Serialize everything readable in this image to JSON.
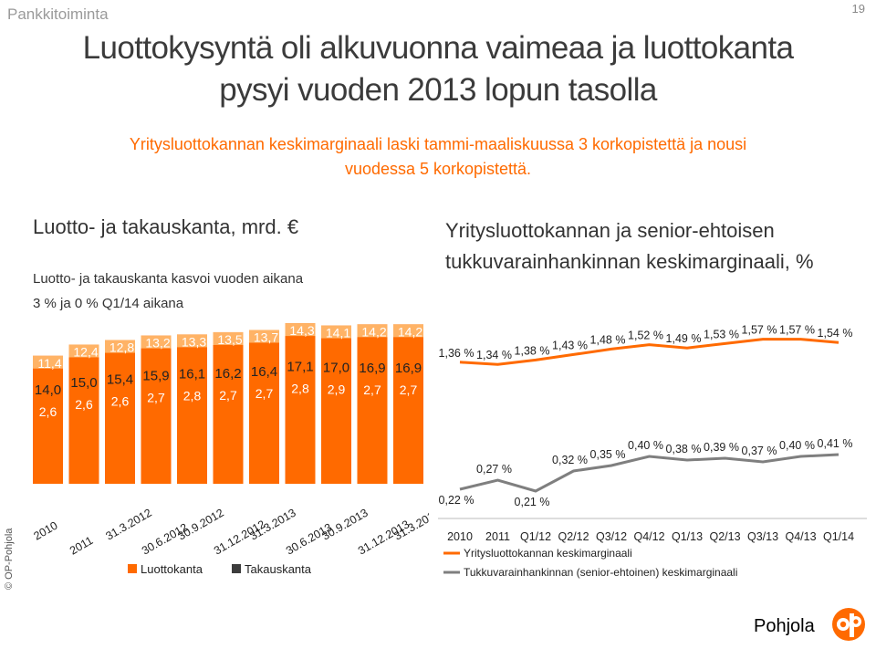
{
  "header": {
    "section": "Pankkitoiminta",
    "page_number": "19",
    "title_line1": "Luottokysyntä oli alkuvuonna vaimeaa ja luottokanta",
    "title_line2": "pysyi vuoden 2013 lopun tasolla",
    "subtitle_line1": "Yritysluottokannan keskimarginaali laski tammi-maaliskuussa 3 korkopistettä ja nousi",
    "subtitle_line2": "vuodessa 5 korkopistettä."
  },
  "left_panel": {
    "heading": "Luotto- ja takauskanta, mrd. €",
    "note_line1": "Luotto- ja takauskanta kasvoi vuoden aikana",
    "note_line2": "3 % ja 0 % Q1/14 aikana"
  },
  "right_panel": {
    "heading_line1": "Yritysluottokannan ja senior-ehtoisen",
    "heading_line2": "tukkuvarainhankinnan keskimarginaali, %"
  },
  "footer": {
    "copyright": "© OP-Pohjola",
    "logo_text": "Pohjola"
  },
  "colors": {
    "orange": "#ff6a00",
    "orange_light": "#ffb366",
    "gray_dark": "#3c3c3c",
    "gray_line": "#7f7f7f"
  },
  "chart_data": [
    {
      "type": "bar",
      "stacked": true,
      "categories": [
        "2010",
        "2011",
        "31.3.2012",
        "30.6.2012",
        "30.9.2012",
        "31.12.2012",
        "31.3.2013",
        "30.6.2013",
        "30.9.2013",
        "31.12.2013",
        "31.3.2014"
      ],
      "series": [
        {
          "name": "Luottokanta",
          "values": [
            11.4,
            12.4,
            12.8,
            13.2,
            13.3,
            13.5,
            13.7,
            14.3,
            14.1,
            14.2,
            14.2
          ],
          "labels": [
            "11,4",
            "12,4",
            "12,8",
            "13,2",
            "13,3",
            "13,5",
            "13,7",
            "14,3",
            "14,1",
            "14,2",
            "14,2"
          ]
        },
        {
          "name": "Takauskanta",
          "values": [
            2.6,
            2.6,
            2.6,
            2.7,
            2.8,
            2.7,
            2.7,
            2.8,
            2.9,
            2.7,
            2.7
          ],
          "labels": [
            "2,6",
            "2,6",
            "2,6",
            "2,7",
            "2,8",
            "2,7",
            "2,7",
            "2,8",
            "2,9",
            "2,7",
            "2,7"
          ]
        }
      ],
      "totals": [
        14.0,
        15.0,
        15.4,
        15.9,
        16.1,
        16.2,
        16.4,
        17.1,
        17.0,
        16.9,
        16.9
      ],
      "total_labels": [
        "14,0",
        "15,0",
        "15,4",
        "15,9",
        "16,1",
        "16,2",
        "16,4",
        "17,1",
        "17,0",
        "16,9",
        "16,9"
      ],
      "legend": [
        "Luottokanta",
        "Takauskanta"
      ],
      "legend_position": "bottom"
    },
    {
      "type": "line",
      "categories": [
        "2010",
        "2011",
        "Q1/12",
        "Q2/12",
        "Q3/12",
        "Q4/12",
        "Q1/13",
        "Q2/13",
        "Q3/13",
        "Q4/13",
        "Q1/14"
      ],
      "series": [
        {
          "name": "Yritysluottokannan keskimarginaali",
          "values": [
            1.36,
            1.34,
            1.38,
            1.43,
            1.48,
            1.52,
            1.49,
            1.53,
            1.57,
            1.57,
            1.54
          ],
          "labels": [
            "1,36 %",
            "1,34 %",
            "1,38 %",
            "1,43 %",
            "1,48 %",
            "1,52 %",
            "1,49 %",
            "1,53 %",
            "1,57 %",
            "1,57 %",
            "1,54 %"
          ]
        },
        {
          "name": "Tukkuvarainhankinnan (senior-ehtoinen) keskimarginaali",
          "values": [
            0.22,
            0.27,
            0.21,
            0.32,
            0.35,
            0.4,
            0.38,
            0.39,
            0.37,
            0.4,
            0.41
          ],
          "labels": [
            "0,22 %",
            "0,27 %",
            "0,21 %",
            "0,32 %",
            "0,35 %",
            "0,40 %",
            "0,38 %",
            "0,39 %",
            "0,37 %",
            "0,40 %",
            "0,41 %"
          ]
        }
      ],
      "legend": [
        "Yritysluottokannan keskimarginaali",
        "Tukkuvarainhankinnan (senior-ehtoinen) keskimarginaali"
      ],
      "legend_position": "bottom"
    }
  ]
}
